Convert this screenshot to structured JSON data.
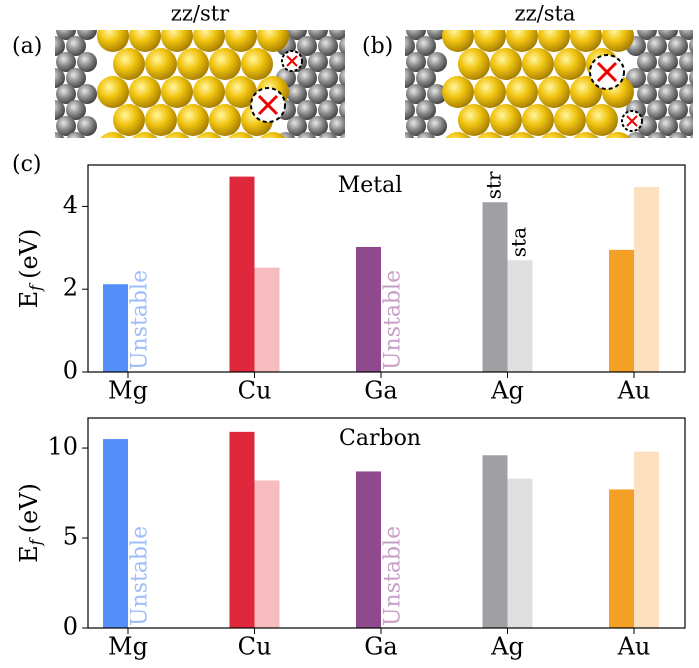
{
  "panels": {
    "a": "(a)",
    "b": "(b)",
    "c": "(c)",
    "title_a": "zz/str",
    "title_b": "zz/sta"
  },
  "chart_data": [
    {
      "type": "bar",
      "annotation": "Metal",
      "ylabel": {
        "main": "E",
        "sub": "f",
        "unit": "(eV)"
      },
      "categories": [
        "Mg",
        "Cu",
        "Ga",
        "Ag",
        "Au"
      ],
      "series": [
        {
          "name": "str",
          "colors": [
            "#5590fa",
            "#e0283c",
            "#8e4a8c",
            "#a0a0a4",
            "#f4a024"
          ],
          "values": [
            2.12,
            4.72,
            3.02,
            4.1,
            2.95
          ]
        },
        {
          "name": "sta",
          "colors": [
            "#9dbcfc",
            "#f7bcc0",
            "#c79fc6",
            "#e0e0e0",
            "#fde0bf"
          ],
          "values": [
            null,
            2.52,
            null,
            2.7,
            4.47
          ],
          "value_labels": [
            "Unstable",
            null,
            "Unstable",
            null,
            null
          ]
        }
      ],
      "ylim": [
        0,
        5
      ],
      "yticks": [
        0,
        2,
        4
      ]
    },
    {
      "type": "bar",
      "annotation": "Carbon",
      "ylabel": {
        "main": "E",
        "sub": "f",
        "unit": "(eV)"
      },
      "categories": [
        "Mg",
        "Cu",
        "Ga",
        "Ag",
        "Au"
      ],
      "series": [
        {
          "colors": [
            "#5590fa",
            "#e0283c",
            "#8e4a8c",
            "#a0a0a4",
            "#f4a024"
          ],
          "values": [
            10.5,
            10.9,
            8.7,
            9.6,
            7.7
          ]
        },
        {
          "colors": [
            "#9dbcfc",
            "#f7bcc0",
            "#c79fc6",
            "#e0e0e0",
            "#fde0bf"
          ],
          "values": [
            null,
            8.2,
            null,
            8.3,
            9.8
          ],
          "value_labels": [
            "Unstable",
            null,
            "Unstable",
            null,
            null
          ]
        }
      ],
      "ylim": [
        0,
        11.67
      ],
      "yticks": [
        0,
        5,
        10
      ]
    }
  ]
}
